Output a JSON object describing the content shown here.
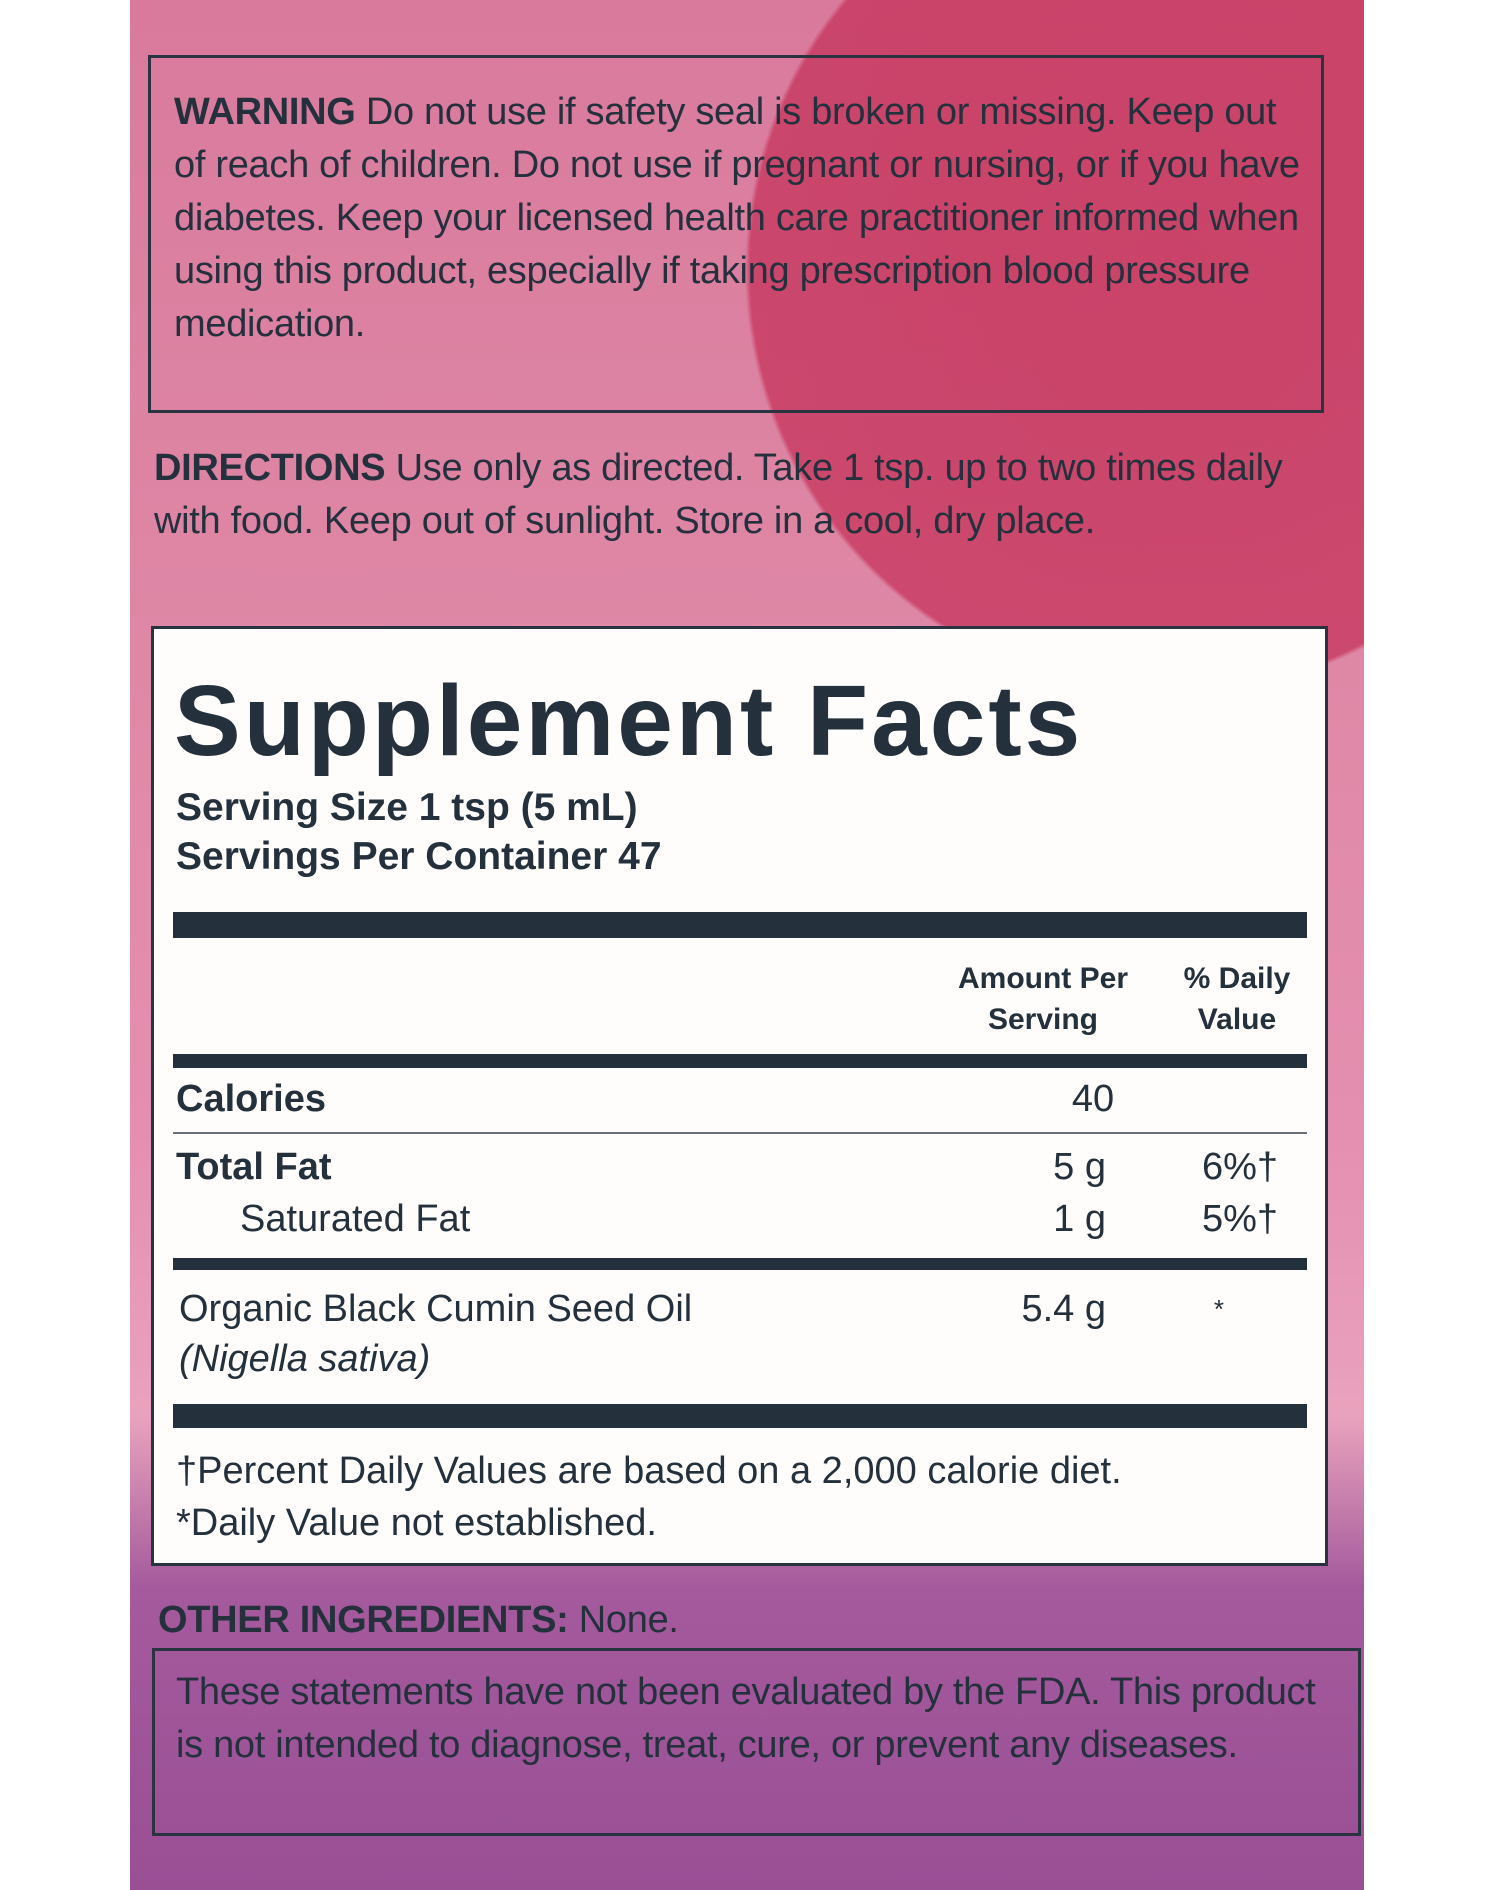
{
  "warning": {
    "heading": "WARNING",
    "text": " Do not use if safety seal is broken or missing. Keep out of reach of children. Do not use if pregnant or nursing, or if you have diabetes. Keep your licensed health care practitioner informed when using this product, especially if taking prescription blood pressure medication."
  },
  "directions": {
    "heading": "DIRECTIONS",
    "text": " Use only as directed. Take 1 tsp. up to two times daily with food. Keep out of sunlight. Store in a cool, dry place."
  },
  "facts": {
    "title": "Supplement Facts",
    "serving_size": "Serving Size 1 tsp (5 mL)",
    "servings_per_container": "Servings Per Container 47",
    "col_amount_1": "Amount Per",
    "col_amount_2": "Serving",
    "col_dv_1": "% Daily",
    "col_dv_2": "Value",
    "rows": [
      {
        "name": "Calories",
        "amount": "40",
        "dv": ""
      },
      {
        "name": "Total Fat",
        "amount": "5 g",
        "dv": "6%†"
      },
      {
        "name": "Saturated Fat",
        "amount": "1 g",
        "dv": "5%†"
      },
      {
        "name": "Organic Black Cumin Seed Oil",
        "sub": "(Nigella sativa)",
        "amount": "5.4 g",
        "dv": "*"
      }
    ],
    "footnote_1": "†Percent Daily Values are based on a 2,000 calorie diet.",
    "footnote_2": "*Daily Value not established."
  },
  "other_ingredients": {
    "heading": "OTHER INGREDIENTS:",
    "text": " None."
  },
  "fda": "These statements have not been evaluated by the FDA. This product is not intended to diagnose, treat, cure, or prevent any diseases.",
  "colors": {
    "text": "#24313d",
    "background_pink": "#df88a6",
    "circle_red": "#c42e56",
    "purple": "#9a4f95"
  }
}
